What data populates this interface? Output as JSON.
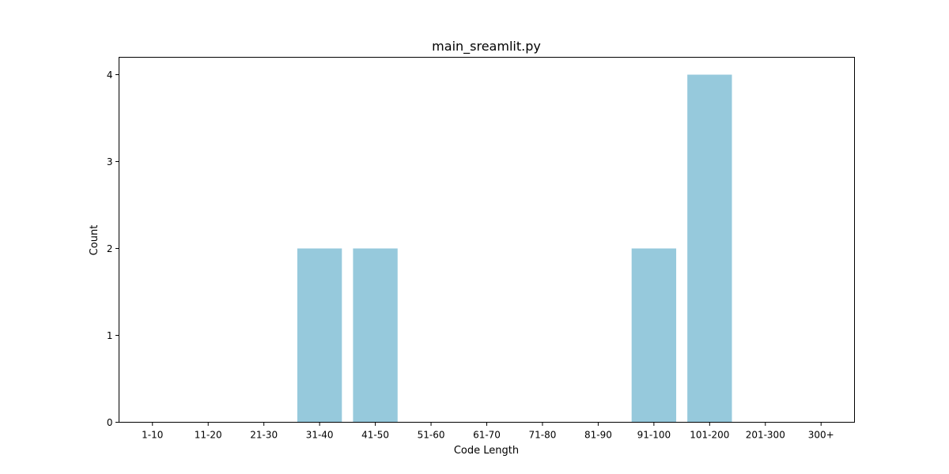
{
  "chart_data": {
    "type": "bar",
    "title": "main_sreamlit.py",
    "xlabel": "Code Length",
    "ylabel": "Count",
    "categories": [
      "1-10",
      "11-20",
      "21-30",
      "31-40",
      "41-50",
      "51-60",
      "61-70",
      "71-80",
      "81-90",
      "91-100",
      "101-200",
      "201-300",
      "300+"
    ],
    "values": [
      0,
      0,
      0,
      2,
      2,
      0,
      0,
      0,
      0,
      2,
      4,
      0,
      0
    ],
    "ylim": [
      0,
      4.2
    ],
    "yticks": [
      0,
      1,
      2,
      3,
      4
    ],
    "grid": false,
    "legend": "none",
    "bar_color": "#96c9dc"
  }
}
